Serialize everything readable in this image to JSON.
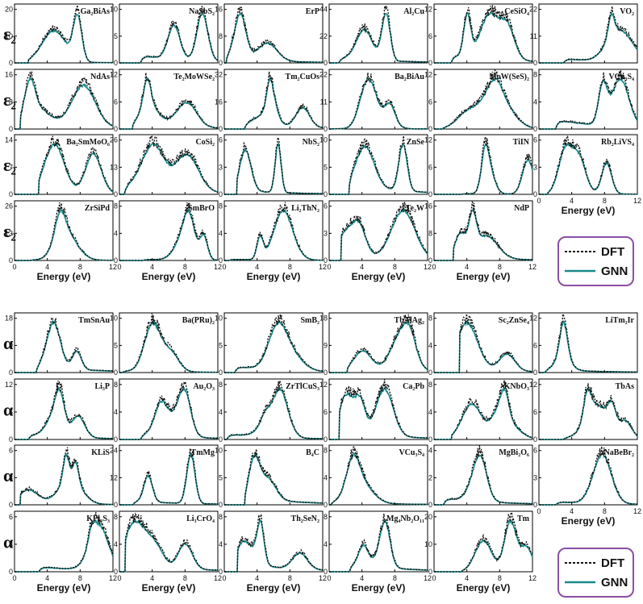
{
  "colors": {
    "dft": "#111111",
    "gnn": "#1a8a8a",
    "legend_border": "#8a4fa6"
  },
  "top": {
    "ylabel": "ε₂",
    "legend": {
      "dft": "DFT",
      "gnn": "GNN"
    },
    "xlabel": "Energy (eV)",
    "panels": [
      {
        "label": "Ga₂BiAs",
        "yticks": [
          0,
          10,
          20
        ]
      },
      {
        "label": "NaSbS₂",
        "yticks": [
          0,
          5,
          10
        ]
      },
      {
        "label": "ErP",
        "yticks": [
          0,
          8,
          16
        ]
      },
      {
        "label": "Al₂Cu",
        "yticks": [
          0,
          22,
          44
        ]
      },
      {
        "label": "CeSiO₄",
        "yticks": [
          0,
          6,
          12
        ]
      },
      {
        "label": "VO₂",
        "yticks": [
          0,
          11,
          22
        ]
      },
      {
        "label": "NdAs",
        "yticks": [
          0,
          8,
          16
        ]
      },
      {
        "label": "Te₂MoWSe₂",
        "yticks": [
          0,
          6,
          12
        ]
      },
      {
        "label": "Tm₂CuOs",
        "yticks": [
          0,
          16,
          32
        ]
      },
      {
        "label": "Ba₂BiAu",
        "yticks": [
          0,
          11,
          22
        ]
      },
      {
        "label": "MoW(SeS)₂",
        "yticks": [
          0,
          6,
          12
        ]
      },
      {
        "label": "VCu₃S₄",
        "yticks": [
          0,
          4,
          8
        ]
      },
      {
        "label": "Ba₂SmMoO₆",
        "yticks": [
          0,
          7,
          14
        ]
      },
      {
        "label": "CoSi₂",
        "yticks": [
          0,
          13,
          26
        ]
      },
      {
        "label": "NbS₂",
        "yticks": [
          0,
          3,
          6
        ]
      },
      {
        "label": "ZnSe",
        "yticks": [
          0,
          5,
          10
        ]
      },
      {
        "label": "TiIN",
        "yticks": [
          0,
          6,
          12
        ]
      },
      {
        "label": "Rb₂LiVS₄",
        "yticks": [
          0,
          3,
          6
        ]
      },
      {
        "label": "ZrSiPd",
        "yticks": [
          0,
          13,
          26
        ]
      },
      {
        "label": "SmBrO",
        "yticks": [
          0,
          4,
          8
        ]
      },
      {
        "label": "Li₂ThN₂",
        "yticks": [
          0,
          4,
          8
        ]
      },
      {
        "label": "Te₂W",
        "yticks": [
          0,
          3,
          6
        ]
      },
      {
        "label": "NdP",
        "yticks": [
          0,
          8,
          16
        ]
      }
    ]
  },
  "bottom": {
    "ylabel": "α",
    "legend": {
      "dft": "DFT",
      "gnn": "GNN"
    },
    "xlabel": "Energy (eV)",
    "panels": [
      {
        "label": "TmSnAu",
        "yticks": [
          0,
          9,
          18
        ]
      },
      {
        "label": "Ba(PRu)₂",
        "yticks": [
          0,
          5,
          10
        ]
      },
      {
        "label": "SmB₂",
        "yticks": [
          0,
          5,
          10
        ]
      },
      {
        "label": "TbAlAg₂",
        "yticks": [
          0,
          9,
          18
        ]
      },
      {
        "label": "Sc₂ZnSe₄",
        "yticks": [
          0,
          4,
          8
        ]
      },
      {
        "label": "LiTm₂Ir",
        "yticks": [
          0,
          6,
          12
        ]
      },
      {
        "label": "Li₃P",
        "yticks": [
          0,
          6,
          12
        ]
      },
      {
        "label": "Au₂O₃",
        "yticks": [
          0,
          4,
          8
        ]
      },
      {
        "label": "ZrTlCuS₃",
        "yticks": [
          0,
          4,
          8
        ]
      },
      {
        "label": "Ca₂Pb",
        "yticks": [
          0,
          6,
          12
        ]
      },
      {
        "label": "KNbO₃",
        "yticks": [
          0,
          4,
          8
        ]
      },
      {
        "label": "TbAs",
        "yticks": [
          0,
          6,
          12
        ]
      },
      {
        "label": "KLiS",
        "yticks": [
          0,
          3,
          6
        ]
      },
      {
        "label": "TmMg",
        "yticks": [
          0,
          12,
          24
        ]
      },
      {
        "label": "B₄C",
        "yticks": [
          0,
          5,
          10
        ]
      },
      {
        "label": "VCu₃S₄",
        "yticks": [
          0,
          4,
          8
        ]
      },
      {
        "label": "MgBi₂O₆",
        "yticks": [
          0,
          2,
          4
        ]
      },
      {
        "label": "NaBeBr₂",
        "yticks": [
          0,
          3,
          6
        ]
      },
      {
        "label": "KPt₂S₃",
        "yticks": [
          0,
          3,
          6
        ]
      },
      {
        "label": "Li₃CrO₄",
        "yticks": [
          0,
          4,
          8
        ]
      },
      {
        "label": "Th₂SeN₂",
        "yticks": [
          0,
          4,
          8
        ]
      },
      {
        "label": "Mg₄Nb₂O₁₁",
        "yticks": [
          0,
          4,
          8
        ]
      },
      {
        "label": "Tm",
        "yticks": [
          0,
          10,
          20
        ]
      }
    ]
  },
  "xticks": [
    0,
    4,
    8,
    12
  ],
  "chart_data": {
    "type": "line",
    "grid": false,
    "xlim": [
      0,
      12
    ],
    "series": [
      {
        "name": "DFT"
      },
      {
        "name": "GNN"
      }
    ],
    "legend_position": "bottom-right"
  }
}
